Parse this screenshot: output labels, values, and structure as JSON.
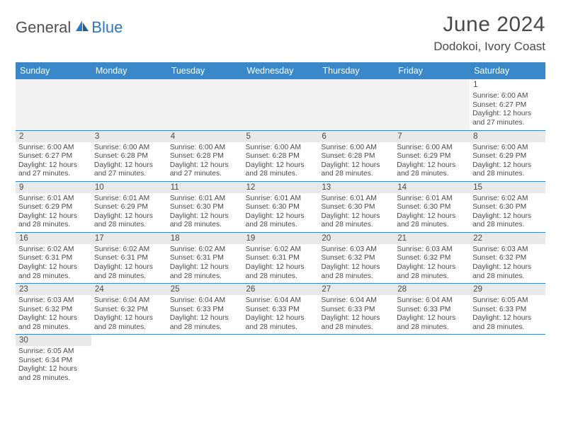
{
  "brand": {
    "part1": "General",
    "part2": "Blue",
    "icon_color": "#2a78bf"
  },
  "title": "June 2024",
  "location": "Dodokoi, Ivory Coast",
  "colors": {
    "header_bg": "#3a87c9",
    "header_text": "#ffffff",
    "daynum_bg": "#e9e9e9",
    "border": "#3a87c9",
    "text": "#4a4a4a",
    "blank_bg": "#f3f3f3"
  },
  "weekdays": [
    "Sunday",
    "Monday",
    "Tuesday",
    "Wednesday",
    "Thursday",
    "Friday",
    "Saturday"
  ],
  "weeks": [
    [
      null,
      null,
      null,
      null,
      null,
      null,
      {
        "n": "1",
        "sr": "6:00 AM",
        "ss": "6:27 PM",
        "dl": "12 hours and 27 minutes."
      }
    ],
    [
      {
        "n": "2",
        "sr": "6:00 AM",
        "ss": "6:27 PM",
        "dl": "12 hours and 27 minutes."
      },
      {
        "n": "3",
        "sr": "6:00 AM",
        "ss": "6:28 PM",
        "dl": "12 hours and 27 minutes."
      },
      {
        "n": "4",
        "sr": "6:00 AM",
        "ss": "6:28 PM",
        "dl": "12 hours and 27 minutes."
      },
      {
        "n": "5",
        "sr": "6:00 AM",
        "ss": "6:28 PM",
        "dl": "12 hours and 28 minutes."
      },
      {
        "n": "6",
        "sr": "6:00 AM",
        "ss": "6:28 PM",
        "dl": "12 hours and 28 minutes."
      },
      {
        "n": "7",
        "sr": "6:00 AM",
        "ss": "6:29 PM",
        "dl": "12 hours and 28 minutes."
      },
      {
        "n": "8",
        "sr": "6:00 AM",
        "ss": "6:29 PM",
        "dl": "12 hours and 28 minutes."
      }
    ],
    [
      {
        "n": "9",
        "sr": "6:01 AM",
        "ss": "6:29 PM",
        "dl": "12 hours and 28 minutes."
      },
      {
        "n": "10",
        "sr": "6:01 AM",
        "ss": "6:29 PM",
        "dl": "12 hours and 28 minutes."
      },
      {
        "n": "11",
        "sr": "6:01 AM",
        "ss": "6:30 PM",
        "dl": "12 hours and 28 minutes."
      },
      {
        "n": "12",
        "sr": "6:01 AM",
        "ss": "6:30 PM",
        "dl": "12 hours and 28 minutes."
      },
      {
        "n": "13",
        "sr": "6:01 AM",
        "ss": "6:30 PM",
        "dl": "12 hours and 28 minutes."
      },
      {
        "n": "14",
        "sr": "6:01 AM",
        "ss": "6:30 PM",
        "dl": "12 hours and 28 minutes."
      },
      {
        "n": "15",
        "sr": "6:02 AM",
        "ss": "6:30 PM",
        "dl": "12 hours and 28 minutes."
      }
    ],
    [
      {
        "n": "16",
        "sr": "6:02 AM",
        "ss": "6:31 PM",
        "dl": "12 hours and 28 minutes."
      },
      {
        "n": "17",
        "sr": "6:02 AM",
        "ss": "6:31 PM",
        "dl": "12 hours and 28 minutes."
      },
      {
        "n": "18",
        "sr": "6:02 AM",
        "ss": "6:31 PM",
        "dl": "12 hours and 28 minutes."
      },
      {
        "n": "19",
        "sr": "6:02 AM",
        "ss": "6:31 PM",
        "dl": "12 hours and 28 minutes."
      },
      {
        "n": "20",
        "sr": "6:03 AM",
        "ss": "6:32 PM",
        "dl": "12 hours and 28 minutes."
      },
      {
        "n": "21",
        "sr": "6:03 AM",
        "ss": "6:32 PM",
        "dl": "12 hours and 28 minutes."
      },
      {
        "n": "22",
        "sr": "6:03 AM",
        "ss": "6:32 PM",
        "dl": "12 hours and 28 minutes."
      }
    ],
    [
      {
        "n": "23",
        "sr": "6:03 AM",
        "ss": "6:32 PM",
        "dl": "12 hours and 28 minutes."
      },
      {
        "n": "24",
        "sr": "6:04 AM",
        "ss": "6:32 PM",
        "dl": "12 hours and 28 minutes."
      },
      {
        "n": "25",
        "sr": "6:04 AM",
        "ss": "6:33 PM",
        "dl": "12 hours and 28 minutes."
      },
      {
        "n": "26",
        "sr": "6:04 AM",
        "ss": "6:33 PM",
        "dl": "12 hours and 28 minutes."
      },
      {
        "n": "27",
        "sr": "6:04 AM",
        "ss": "6:33 PM",
        "dl": "12 hours and 28 minutes."
      },
      {
        "n": "28",
        "sr": "6:04 AM",
        "ss": "6:33 PM",
        "dl": "12 hours and 28 minutes."
      },
      {
        "n": "29",
        "sr": "6:05 AM",
        "ss": "6:33 PM",
        "dl": "12 hours and 28 minutes."
      }
    ],
    [
      {
        "n": "30",
        "sr": "6:05 AM",
        "ss": "6:34 PM",
        "dl": "12 hours and 28 minutes."
      },
      null,
      null,
      null,
      null,
      null,
      null
    ]
  ],
  "labels": {
    "sunrise": "Sunrise:",
    "sunset": "Sunset:",
    "daylight": "Daylight:"
  }
}
